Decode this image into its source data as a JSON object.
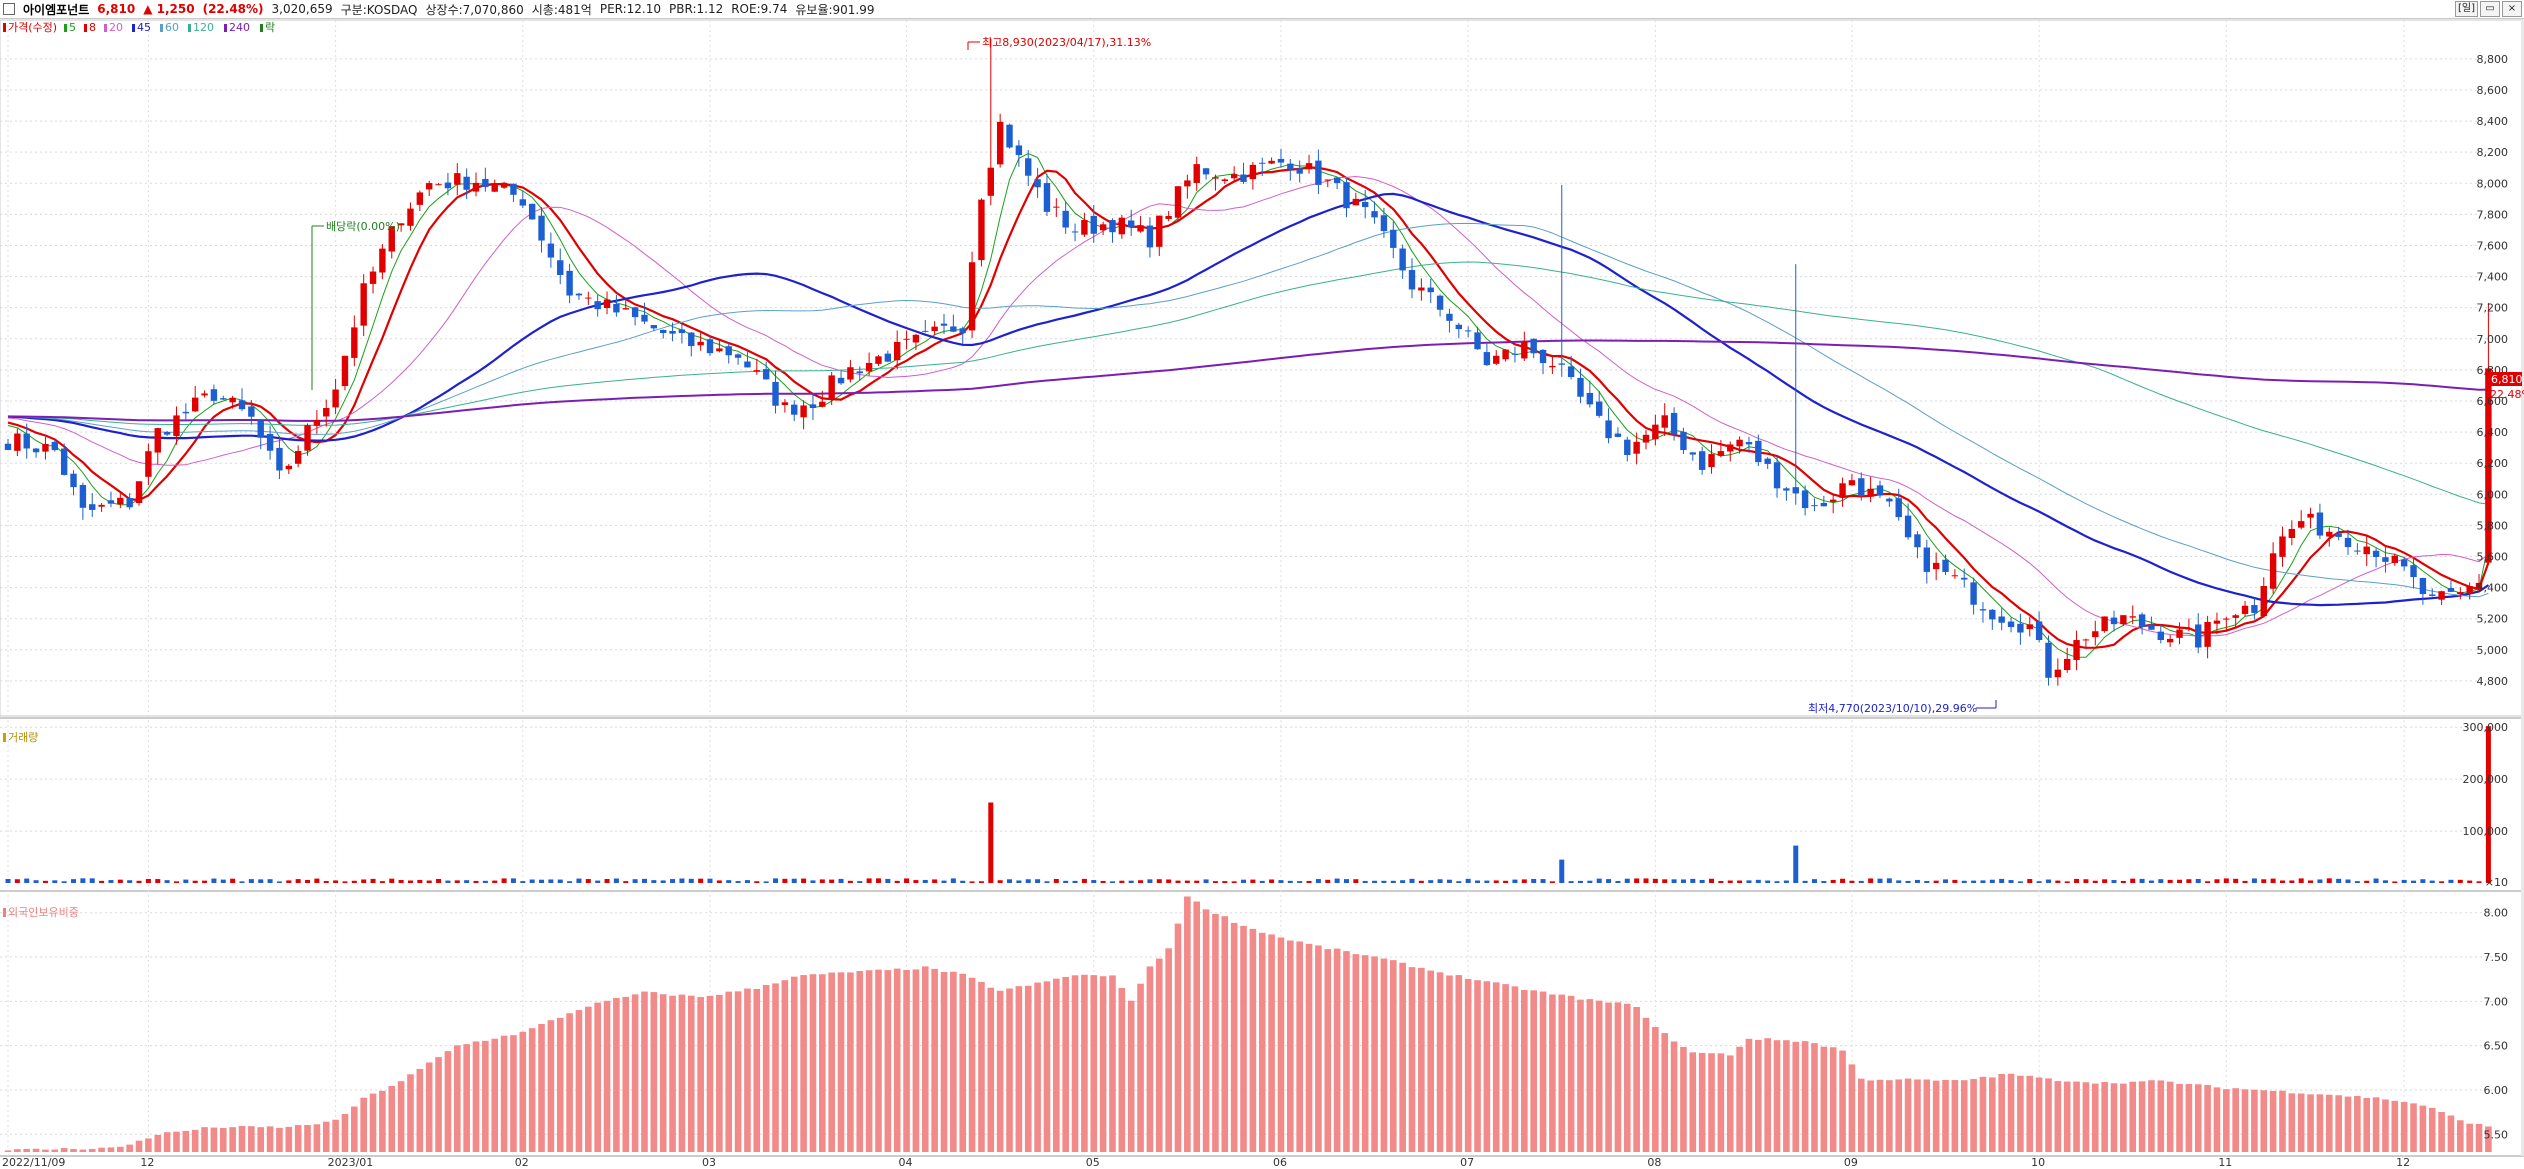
{
  "header": {
    "stock_name": "아이엠포넌트",
    "price": "6,810",
    "change": "▲ 1,250",
    "change_pct": "(22.48%)",
    "volume": "3,020,659",
    "market": "구분:KOSDAQ",
    "shares": "상장수:7,070,860",
    "market_cap": "시총:481억",
    "per": "PER:12.10",
    "pbr": "PBR:1.12",
    "roe": "ROE:9.74",
    "reserve": "유보율:901.99",
    "period_button": "[일]"
  },
  "legend": {
    "price_label": "가격(수정)",
    "ma": [
      {
        "label": "5",
        "color": "#1aa01a"
      },
      {
        "label": "8",
        "color": "#e00000"
      },
      {
        "label": "20",
        "color": "#d060c8"
      },
      {
        "label": "45",
        "color": "#1d22cc"
      },
      {
        "label": "60",
        "color": "#5aa0c8"
      },
      {
        "label": "120",
        "color": "#3ab090"
      },
      {
        "label": "240",
        "color": "#7a1fb4"
      },
      {
        "label": "락",
        "color": "#208020"
      }
    ],
    "volume_label": "거래량",
    "foreign_label": "외국인보유비중"
  },
  "annotations": {
    "high": "최고8,930(2023/04/17),31.13%",
    "low": "최저4,770(2023/10/10),29.96%",
    "dividend": "배당락(0.00%)",
    "last_price": "6,810",
    "last_pct": "22.48%"
  },
  "chart_data": {
    "type": "candlestick",
    "price_axis": {
      "ticks": [
        "8,800",
        "8,600",
        "8,400",
        "8,200",
        "8,000",
        "7,800",
        "7,600",
        "7,400",
        "7,200",
        "7,000",
        "6,800",
        "6,600",
        "6,400",
        "6,200",
        "6,000",
        "5,800",
        "5,600",
        "5,400",
        "5,200",
        "5,000",
        "4,800"
      ],
      "ylim": [
        4600,
        9050
      ]
    },
    "volume_axis": {
      "ticks": [
        "300,000",
        "200,000",
        "100,000"
      ],
      "unit": "×10",
      "ylim": [
        0,
        310000
      ]
    },
    "foreign_axis": {
      "ticks": [
        "8.00",
        "7.50",
        "7.00",
        "6.50",
        "6.00",
        "5.50"
      ],
      "ylim": [
        5.3,
        8.2
      ]
    },
    "x_labels": [
      "2022/11/09",
      "12",
      "2023/01",
      "02",
      "03",
      "04",
      "05",
      "06",
      "07",
      "08",
      "09",
      "10",
      "11",
      "12"
    ],
    "x_label_bar_index": [
      0,
      15,
      35,
      55,
      75,
      96,
      116,
      136,
      156,
      176,
      197,
      217,
      237,
      256
    ],
    "anchors": [
      [
        0,
        6350
      ],
      [
        5,
        6280
      ],
      [
        8,
        5880
      ],
      [
        13,
        5950
      ],
      [
        16,
        6400
      ],
      [
        22,
        6650
      ],
      [
        26,
        6480
      ],
      [
        29,
        6100
      ],
      [
        32,
        6400
      ],
      [
        35,
        6700
      ],
      [
        38,
        7300
      ],
      [
        42,
        7800
      ],
      [
        45,
        8000
      ],
      [
        50,
        8020
      ],
      [
        55,
        7900
      ],
      [
        60,
        7300
      ],
      [
        66,
        7150
      ],
      [
        72,
        6980
      ],
      [
        78,
        6900
      ],
      [
        83,
        6550
      ],
      [
        86,
        6600
      ],
      [
        90,
        6800
      ],
      [
        94,
        6900
      ],
      [
        98,
        7000
      ],
      [
        102,
        7100
      ],
      [
        104,
        7950
      ],
      [
        106,
        8380
      ],
      [
        108,
        8150
      ],
      [
        111,
        7850
      ],
      [
        114,
        7700
      ],
      [
        118,
        7750
      ],
      [
        122,
        7650
      ],
      [
        127,
        8100
      ],
      [
        131,
        8050
      ],
      [
        137,
        8150
      ],
      [
        141,
        8000
      ],
      [
        145,
        7800
      ],
      [
        148,
        7550
      ],
      [
        150,
        7350
      ],
      [
        154,
        7150
      ],
      [
        158,
        6850
      ],
      [
        162,
        6950
      ],
      [
        165,
        6850
      ],
      [
        170,
        6450
      ],
      [
        173,
        6300
      ],
      [
        177,
        6450
      ],
      [
        181,
        6200
      ],
      [
        185,
        6350
      ],
      [
        189,
        6100
      ],
      [
        193,
        5900
      ],
      [
        197,
        6100
      ],
      [
        201,
        5900
      ],
      [
        204,
        5600
      ],
      [
        208,
        5450
      ],
      [
        212,
        5250
      ],
      [
        216,
        5150
      ],
      [
        218,
        4860
      ],
      [
        222,
        5100
      ],
      [
        226,
        5200
      ],
      [
        230,
        5120
      ],
      [
        234,
        5060
      ],
      [
        237,
        5250
      ],
      [
        240,
        5280
      ],
      [
        242,
        5650
      ],
      [
        245,
        5830
      ],
      [
        249,
        5750
      ],
      [
        253,
        5650
      ],
      [
        256,
        5500
      ],
      [
        259,
        5300
      ],
      [
        262,
        5350
      ],
      [
        264,
        5450
      ],
      [
        265,
        6810
      ]
    ],
    "bar_count": 266,
    "volume_spikes": [
      [
        105,
        155000
      ],
      [
        166,
        45000
      ],
      [
        191,
        72000
      ],
      [
        265,
        302000
      ]
    ],
    "foreign_anchors": [
      [
        0,
        5.32
      ],
      [
        12,
        5.35
      ],
      [
        16,
        5.5
      ],
      [
        22,
        5.58
      ],
      [
        30,
        5.58
      ],
      [
        35,
        5.65
      ],
      [
        38,
        5.9
      ],
      [
        42,
        6.1
      ],
      [
        48,
        6.5
      ],
      [
        55,
        6.65
      ],
      [
        62,
        6.95
      ],
      [
        68,
        7.1
      ],
      [
        74,
        7.05
      ],
      [
        80,
        7.15
      ],
      [
        84,
        7.28
      ],
      [
        90,
        7.33
      ],
      [
        94,
        7.35
      ],
      [
        98,
        7.38
      ],
      [
        102,
        7.3
      ],
      [
        106,
        7.12
      ],
      [
        110,
        7.2
      ],
      [
        114,
        7.3
      ],
      [
        118,
        7.28
      ],
      [
        120,
        7.02
      ],
      [
        122,
        7.38
      ],
      [
        124,
        7.6
      ],
      [
        126,
        8.18
      ],
      [
        128,
        8.05
      ],
      [
        132,
        7.85
      ],
      [
        136,
        7.72
      ],
      [
        140,
        7.62
      ],
      [
        146,
        7.5
      ],
      [
        152,
        7.35
      ],
      [
        158,
        7.22
      ],
      [
        164,
        7.1
      ],
      [
        170,
        7.0
      ],
      [
        174,
        6.95
      ],
      [
        176,
        6.7
      ],
      [
        180,
        6.42
      ],
      [
        184,
        6.4
      ],
      [
        186,
        6.58
      ],
      [
        192,
        6.55
      ],
      [
        196,
        6.45
      ],
      [
        198,
        6.12
      ],
      [
        202,
        6.12
      ],
      [
        208,
        6.1
      ],
      [
        214,
        6.18
      ],
      [
        218,
        6.12
      ],
      [
        224,
        6.08
      ],
      [
        230,
        6.1
      ],
      [
        236,
        6.03
      ],
      [
        242,
        5.99
      ],
      [
        248,
        5.95
      ],
      [
        254,
        5.9
      ],
      [
        258,
        5.83
      ],
      [
        262,
        5.66
      ],
      [
        265,
        5.58
      ]
    ]
  }
}
